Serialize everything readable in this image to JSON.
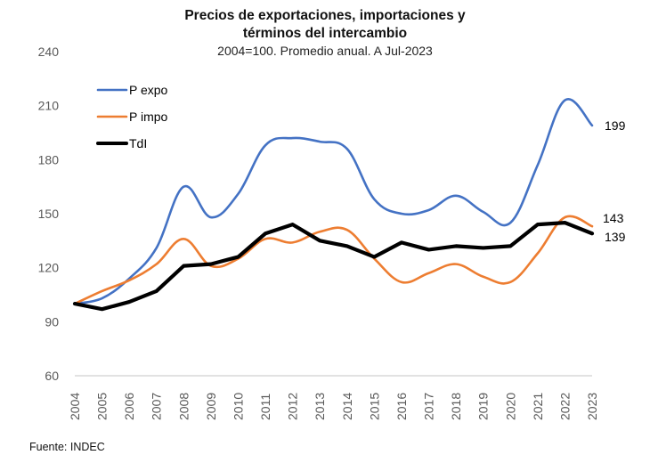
{
  "chart_data": {
    "type": "line",
    "title": "Precios de exportaciones, importaciones y términos del intercambio",
    "title_lines": [
      "Precios de exportaciones, importaciones y",
      "términos del intercambio"
    ],
    "subtitle": "2004=100. Promedio anual. A Jul-2023",
    "xlabel": "",
    "ylabel": "",
    "x": [
      "2004",
      "2005",
      "2006",
      "2007",
      "2008",
      "2009",
      "2010",
      "2011",
      "2012",
      "2013",
      "2014",
      "2015",
      "2016",
      "2017",
      "2018",
      "2019",
      "2020",
      "2021",
      "2022",
      "2023"
    ],
    "ylim": [
      60,
      240
    ],
    "yticks": [
      60,
      90,
      120,
      150,
      180,
      210,
      240
    ],
    "grid": false,
    "legend": "top-left",
    "series": [
      {
        "name": "P expo",
        "color": "#4472C4",
        "end_label": "199",
        "values": [
          100,
          103,
          114,
          131,
          165,
          148,
          161,
          188,
          192,
          190,
          186,
          158,
          150,
          152,
          160,
          151,
          145,
          177,
          213,
          199
        ]
      },
      {
        "name": "P impo",
        "color": "#ED7D31",
        "end_label": "143",
        "values": [
          100,
          107,
          113,
          122,
          136,
          121,
          125,
          136,
          134,
          140,
          141,
          125,
          112,
          117,
          122,
          115,
          112,
          128,
          148,
          143
        ]
      },
      {
        "name": "TdI",
        "color": "#000000",
        "end_label": "139",
        "values": [
          100,
          97,
          101,
          107,
          121,
          122,
          126,
          139,
          144,
          135,
          132,
          126,
          134,
          130,
          132,
          131,
          132,
          144,
          145,
          139
        ]
      }
    ],
    "source": "Fuente: INDEC"
  }
}
